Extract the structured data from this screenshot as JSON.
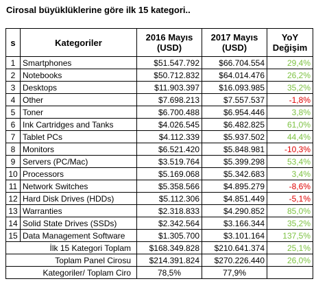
{
  "title": "Cirosal büyüklüklerine göre ilk 15 kategori..",
  "positive_color": "#7dc242",
  "negative_color": "#e00000",
  "table": {
    "header": [
      [
        "s"
      ],
      [
        "Kategoriler"
      ],
      [
        "2016 Mayıs",
        "(USD)"
      ],
      [
        "2017 Mayıs",
        "(USD)"
      ],
      [
        "YoY",
        "Değişim"
      ]
    ],
    "rows": [
      [
        "1",
        "Smartphones",
        "$51.547.792",
        "$66.704.554",
        "29,4%"
      ],
      [
        "2",
        "Notebooks",
        "$50.712.832",
        "$64.014.476",
        "26,2%"
      ],
      [
        "3",
        "Desktops",
        "$11.903.397",
        "$16.093.985",
        "35,2%"
      ],
      [
        "4",
        "Other",
        "$7.698.213",
        "$7.557.537",
        "-1,8%"
      ],
      [
        "5",
        "Toner",
        "$6.700.488",
        "$6.954.446",
        "3,8%"
      ],
      [
        "6",
        "Ink Cartridges and Tanks",
        "$4.026.545",
        "$6.482.825",
        "61,0%"
      ],
      [
        "7",
        "Tablet PCs",
        "$4.112.339",
        "$5.937.502",
        "44,4%"
      ],
      [
        "8",
        "Monitors",
        "$6.521.420",
        "$5.848.981",
        "-10,3%"
      ],
      [
        "9",
        "Servers (PC/Mac)",
        "$3.519.764",
        "$5.399.298",
        "53,4%"
      ],
      [
        "10",
        "Processors",
        "$5.169.068",
        "$5.342.683",
        "3,4%"
      ],
      [
        "11",
        "Network Switches",
        "$5.358.566",
        "$4.895.279",
        "-8,6%"
      ],
      [
        "12",
        "Hard Disk Drives (HDDs)",
        "$5.112.306",
        "$4.851.449",
        "-5,1%"
      ],
      [
        "13",
        "Warranties",
        "$2.318.833",
        "$4.290.852",
        "85,0%"
      ],
      [
        "14",
        "Solid State Drives (SSDs)",
        "$2.342.564",
        "$3.166.344",
        "35,2%"
      ],
      [
        "15",
        "Data Management Software",
        "$1.305.700",
        "$3.101.164",
        "137,5%"
      ]
    ],
    "summary": [
      [
        "İlk 15 Kategori Toplam",
        "$168.349.828",
        "$210.641.374",
        "25,1%"
      ],
      [
        "Toplam Panel Cirosu",
        "$214.391.824",
        "$270.226.440",
        "26,0%"
      ],
      [
        "Kategoriler/ Toplam Ciro",
        "78,5%",
        "77,9%"
      ]
    ]
  }
}
